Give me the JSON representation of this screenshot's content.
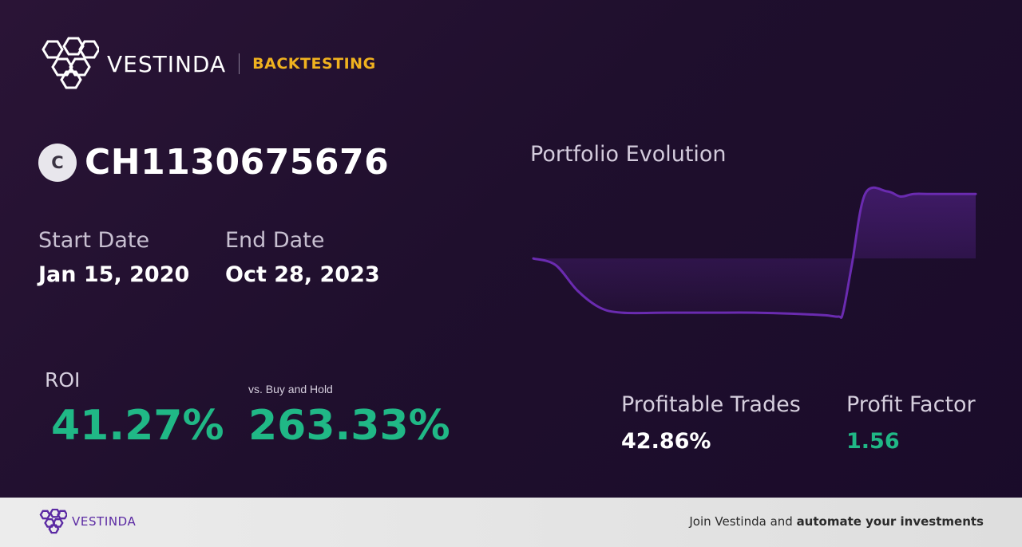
{
  "header": {
    "brand": "VESTINDA",
    "section": "BACKTESTING",
    "logo_icon": "hexagon-cluster-logo"
  },
  "asset": {
    "badge": "C",
    "id": "CH1130675676"
  },
  "dates": {
    "start_label": "Start Date",
    "start_value": "Jan 15, 2020",
    "end_label": "End Date",
    "end_value": "Oct 28, 2023"
  },
  "metrics": {
    "roi_label": "ROI",
    "roi_value": "41.27%",
    "bh_label": "vs. Buy and Hold",
    "bh_value": "263.33%",
    "profitable_trades_label": "Profitable Trades",
    "profitable_trades_value": "42.86%",
    "profit_factor_label": "Profit Factor",
    "profit_factor_value": "1.56"
  },
  "colors": {
    "accent_green": "#20b886",
    "accent_gold": "#f0b21f",
    "line_purple": "#6a2bb0",
    "footer_brand": "#5b2aa3"
  },
  "chart_data": {
    "type": "line",
    "title": "Portfolio Evolution",
    "xlabel": "",
    "ylabel": "",
    "grid": false,
    "legend": "none",
    "x": [
      0,
      0.05,
      0.1,
      0.15,
      0.2,
      0.3,
      0.4,
      0.5,
      0.6,
      0.66,
      0.69,
      0.7,
      0.72,
      0.75,
      0.8,
      0.83,
      0.86,
      0.9,
      1.0
    ],
    "series": [
      {
        "values": [
          100,
          95,
          75,
          62,
          58,
          58,
          58,
          58,
          57,
          56,
          55,
          58,
          95,
          150,
          152,
          148,
          150,
          150,
          150
        ]
      }
    ]
  },
  "footer": {
    "brand": "VESTINDA",
    "cta_prefix": "Join Vestinda and ",
    "cta_bold": "automate your investments"
  }
}
